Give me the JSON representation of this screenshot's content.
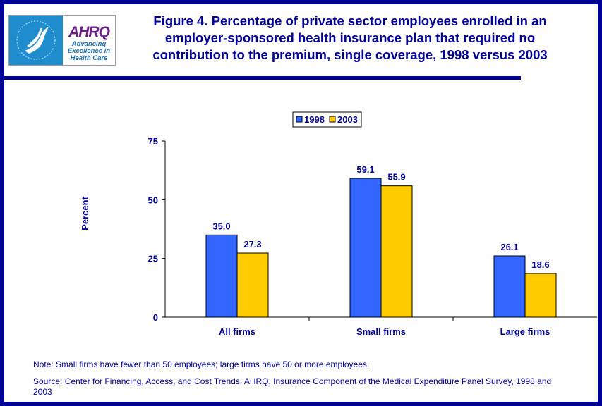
{
  "logo": {
    "agency": "AHRQ",
    "tagline": [
      "Advancing",
      "Excellence in",
      "Health Care"
    ]
  },
  "header": {
    "title": "Figure 4. Percentage of private sector employees enrolled in an employer-sponsored health insurance plan that required no contribution to the premium, single coverage, 1998 versus 2003"
  },
  "chart_data": {
    "type": "bar",
    "title": "",
    "xlabel": "",
    "ylabel": "Percent",
    "categories": [
      "All firms",
      "Small firms",
      "Large firms"
    ],
    "series": [
      {
        "name": "1998",
        "values": [
          35.0,
          59.1,
          26.1
        ],
        "labels": [
          "35.0",
          "59.1",
          "26.1"
        ],
        "color": "#3366ff"
      },
      {
        "name": "2003",
        "values": [
          27.3,
          55.9,
          18.6
        ],
        "labels": [
          "27.3",
          "55.9",
          "18.6"
        ],
        "color": "#ffcc00"
      }
    ],
    "ylim": [
      0,
      75
    ],
    "yticks": [
      "0",
      "25",
      "50",
      "75"
    ],
    "grid": false,
    "legend": "top-center"
  },
  "notes": {
    "note": "Note: Small firms have fewer than 50 employees; large firms have 50 or more employees.",
    "source": "Source: Center for Financing, Access, and Cost Trends, AHRQ, Insurance Component of the Medical Expenditure Panel Survey, 1998 and 2003"
  }
}
